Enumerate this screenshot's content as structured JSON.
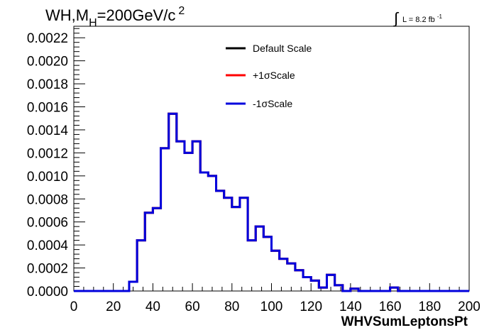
{
  "chart_data": {
    "type": "line",
    "title_main": "WH,M",
    "title_sub": "H",
    "title_rest": "=200GeV/c",
    "title_sup": "2",
    "lumi_integral": "∫",
    "lumi_text": "L = 8.2 fb",
    "lumi_sup": "-1",
    "xlabel": "WHVSumLeptonsPt",
    "ylabel": "",
    "xlim": [
      0,
      200
    ],
    "ylim": [
      0,
      0.0023
    ],
    "x_ticks": [
      "0",
      "20",
      "40",
      "60",
      "80",
      "100",
      "120",
      "140",
      "160",
      "180",
      "200"
    ],
    "y_ticks": [
      "0.0000",
      "0.0002",
      "0.0004",
      "0.0006",
      "0.0008",
      "0.0010",
      "0.0012",
      "0.0014",
      "0.0016",
      "0.0018",
      "0.0020",
      "0.0022"
    ],
    "bin_width": 4,
    "legend_position": "top-center",
    "series": [
      {
        "name": "Default Scale",
        "color": "#000000",
        "values": [
          0,
          0,
          0,
          0,
          0,
          0,
          0,
          8e-05,
          0.00044,
          0.00068,
          0.00072,
          0.00124,
          0.00154,
          0.0013,
          0.0012,
          0.0013,
          0.00103,
          0.001,
          0.00087,
          0.00081,
          0.00073,
          0.00081,
          0.00044,
          0.00056,
          0.00047,
          0.00035,
          0.00028,
          0.00024,
          0.00018,
          0.00012,
          9e-05,
          3e-05,
          0.00014,
          5e-05,
          0,
          2e-05,
          0,
          0,
          0,
          0,
          3e-05,
          0,
          0,
          0,
          0,
          0,
          0,
          0,
          0,
          0
        ]
      },
      {
        "name": "+1σScale",
        "color": "#ff0000",
        "values": [
          0,
          0,
          0,
          0,
          0,
          0,
          0,
          8e-05,
          0.00044,
          0.00068,
          0.00072,
          0.00124,
          0.00154,
          0.0013,
          0.0012,
          0.0013,
          0.00103,
          0.001,
          0.00087,
          0.00081,
          0.00073,
          0.00081,
          0.00044,
          0.00056,
          0.00047,
          0.00035,
          0.00028,
          0.00024,
          0.00018,
          0.00012,
          9e-05,
          3e-05,
          0.00014,
          5e-05,
          0,
          2e-05,
          0,
          0,
          0,
          0,
          3e-05,
          0,
          0,
          0,
          0,
          0,
          0,
          0,
          0,
          0
        ]
      },
      {
        "name": "-1σScale",
        "color": "#0000dd",
        "values": [
          0,
          0,
          0,
          0,
          0,
          0,
          0,
          8e-05,
          0.00044,
          0.00068,
          0.00072,
          0.00124,
          0.00154,
          0.0013,
          0.0012,
          0.0013,
          0.00103,
          0.001,
          0.00087,
          0.00081,
          0.00073,
          0.00081,
          0.00044,
          0.00056,
          0.00047,
          0.00035,
          0.00028,
          0.00024,
          0.00018,
          0.00012,
          9e-05,
          3e-05,
          0.00014,
          5e-05,
          0,
          2e-05,
          0,
          0,
          0,
          0,
          3e-05,
          0,
          0,
          0,
          0,
          0,
          0,
          0,
          0,
          0
        ]
      }
    ]
  }
}
